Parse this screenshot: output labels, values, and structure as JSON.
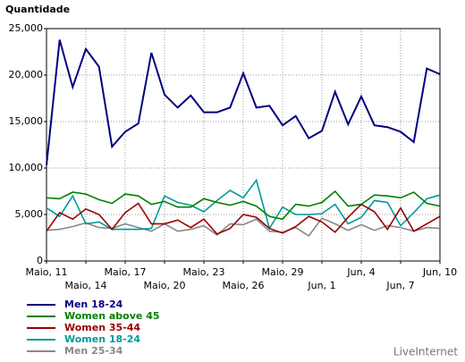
{
  "chart_data": {
    "type": "line",
    "title": "Quantidade",
    "source": "LiveInternet",
    "categories": [
      "Maio, 11",
      null,
      null,
      "Maio, 14",
      null,
      null,
      "Maio, 17",
      null,
      null,
      "Maio, 20",
      null,
      null,
      "Maio, 23",
      null,
      null,
      "Maio, 26",
      null,
      null,
      "Maio, 29",
      null,
      null,
      "Jun, 1",
      null,
      null,
      "Jun, 4",
      null,
      null,
      "Jun, 7",
      null,
      null,
      "Jun, 10"
    ],
    "ylim": [
      0,
      25000
    ],
    "yticks": [
      0,
      {
        "value": 5000,
        "label": "5,000"
      },
      {
        "value": 10000,
        "label": "10,000"
      },
      {
        "value": 15000,
        "label": "15,000"
      },
      {
        "value": 20000,
        "label": "20,000"
      },
      {
        "value": 25000,
        "label": "25,000"
      }
    ],
    "grid": true,
    "series": [
      {
        "name": "Men 18-24",
        "color": "#000080",
        "values": [
          10300,
          23800,
          18700,
          22800,
          20900,
          12300,
          13900,
          14800,
          22400,
          17900,
          16500,
          17800,
          16000,
          16000,
          16500,
          20200,
          16500,
          16700,
          14600,
          15600,
          13200,
          14000,
          18200,
          14700,
          17700,
          14600,
          14400,
          13900,
          12800,
          20700,
          20100
        ]
      },
      {
        "name": "Women above 45",
        "color": "#008000",
        "values": [
          6800,
          6700,
          7400,
          7200,
          6600,
          6200,
          7200,
          7000,
          6100,
          6400,
          5800,
          5800,
          6700,
          6300,
          6000,
          6400,
          5900,
          4800,
          4500,
          6100,
          5900,
          6300,
          7500,
          5900,
          6100,
          7100,
          7000,
          6800,
          7400,
          6200,
          5900
        ]
      },
      {
        "name": "Women 35-44",
        "color": "#990000",
        "values": [
          3200,
          5200,
          4500,
          5600,
          5000,
          3400,
          5200,
          6200,
          4000,
          4000,
          4400,
          3600,
          4500,
          2900,
          3500,
          5000,
          4700,
          3500,
          3000,
          3700,
          4800,
          4200,
          3100,
          4700,
          6100,
          5300,
          3400,
          5700,
          3200,
          4000,
          4800
        ]
      },
      {
        "name": "Women 18-24",
        "color": "#009999",
        "values": [
          5700,
          4800,
          7000,
          4000,
          4200,
          3400,
          3400,
          3400,
          3500,
          7000,
          6300,
          6000,
          5300,
          6500,
          7600,
          6800,
          8700,
          3500,
          5800,
          5000,
          5000,
          5100,
          6100,
          4000,
          4700,
          6500,
          6300,
          3800,
          5200,
          6700,
          7100
        ]
      },
      {
        "name": "Men 25-34",
        "color": "#888888",
        "values": [
          3300,
          3400,
          3700,
          4100,
          3600,
          3500,
          4000,
          3600,
          3200,
          4000,
          3200,
          3400,
          3800,
          2800,
          4000,
          3900,
          4500,
          3200,
          3100,
          3600,
          2700,
          4600,
          4000,
          3300,
          3900,
          3300,
          3800,
          3600,
          3200,
          3600,
          3500
        ]
      }
    ]
  }
}
